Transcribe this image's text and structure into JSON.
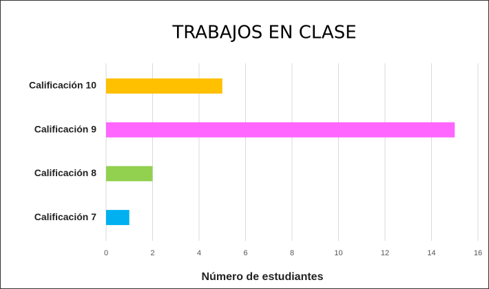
{
  "chart_data": {
    "type": "hbar",
    "title": "TRABAJOS EN CLASE",
    "categories": [
      "Calificación 10",
      "Calificación 9",
      "Calificación 8",
      "Calificación 7"
    ],
    "values": [
      5,
      15,
      2,
      1
    ],
    "colors": [
      "#FFC000",
      "#FF66FF",
      "#92D050",
      "#00B0F0"
    ],
    "xlabel": "Número de estudiantes",
    "xlim": [
      0,
      16
    ],
    "xticks": [
      0,
      2,
      4,
      6,
      8,
      10,
      12,
      14,
      16
    ],
    "grid": true
  }
}
